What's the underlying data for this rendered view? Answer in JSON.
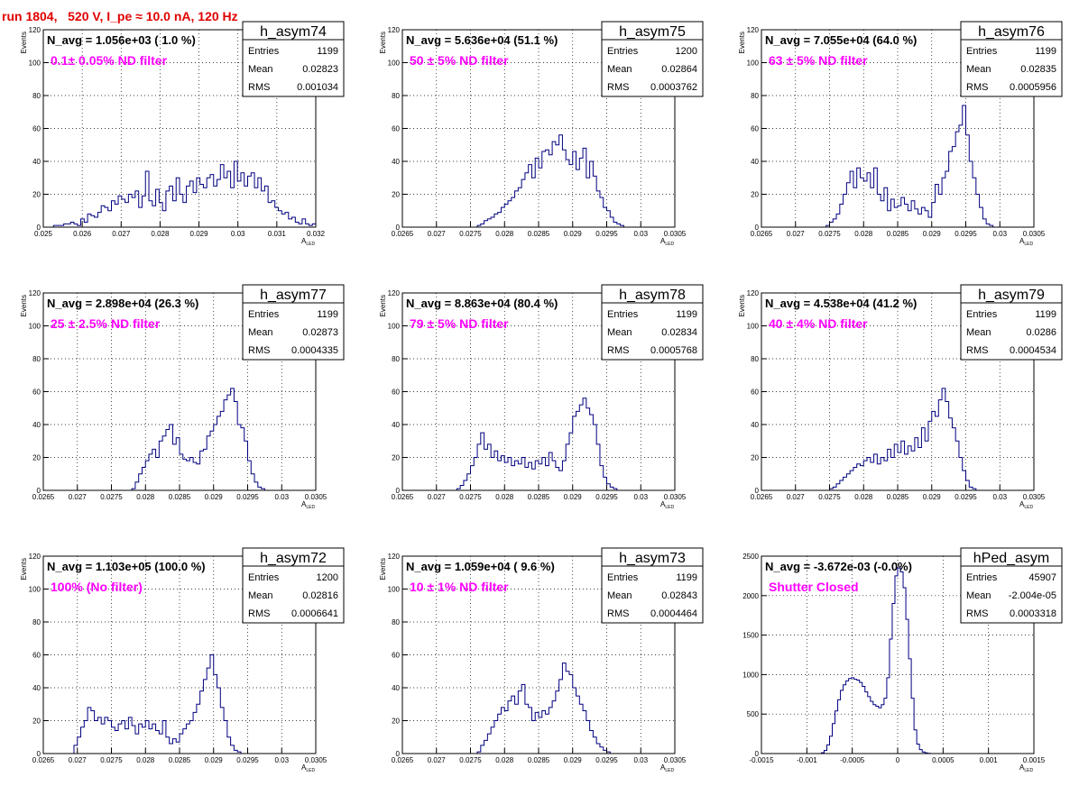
{
  "page_title": "run 1804,   520 V, I_pe ≈ 10.0 nA, 120 Hz",
  "chart_data": [
    {
      "type": "bar",
      "hist_name": "h_asym74",
      "navg": "N_avg = 1.056e+03 ( 1.0 %)",
      "filter": "0.1± 0.05% ND filter",
      "stats": {
        "entries": "1199",
        "mean": "0.02823",
        "rms": "0.001034"
      },
      "xlabel": "A",
      "xlabel_sub": "LED",
      "ylabel": "Events",
      "xlim": [
        0.025,
        0.032
      ],
      "ylim": [
        0,
        120
      ],
      "xticks": [
        0.025,
        0.026,
        0.027,
        0.028,
        0.029,
        0.03,
        0.031,
        0.032
      ],
      "xtick_labels": [
        "0.025",
        "0.026",
        "0.027",
        "0.028",
        "0.029",
        "0.03",
        "0.031",
        "0.032"
      ],
      "yticks": [
        0,
        20,
        40,
        60,
        80,
        100,
        120
      ],
      "ytick_labels": [
        "0",
        "20",
        "40",
        "60",
        "80",
        "100",
        "120"
      ],
      "bin_start": 0.025,
      "bin_width": 8.75e-05,
      "values": [
        0,
        0,
        0,
        1,
        1,
        1,
        2,
        2,
        3,
        2,
        1,
        5,
        3,
        8,
        7,
        6,
        9,
        13,
        12,
        10,
        16,
        14,
        19,
        17,
        15,
        20,
        18,
        22,
        12,
        19,
        34,
        16,
        13,
        23,
        15,
        10,
        22,
        25,
        16,
        30,
        20,
        15,
        25,
        28,
        21,
        30,
        26,
        24,
        30,
        32,
        25,
        29,
        38,
        30,
        34,
        24,
        40,
        28,
        33,
        25,
        31,
        33,
        24,
        30,
        22,
        25,
        15,
        16,
        12,
        10,
        8,
        9,
        5,
        6,
        3,
        2,
        5,
        2,
        1,
        2,
        1,
        1,
        0,
        0
      ]
    },
    {
      "type": "bar",
      "hist_name": "h_asym75",
      "navg": "N_avg = 5.636e+04 (51.1 %)",
      "filter": "50 ± 5% ND filter",
      "stats": {
        "entries": "1200",
        "mean": "0.02864",
        "rms": "0.0003762"
      },
      "xlabel": "A",
      "xlabel_sub": "LED",
      "ylabel": "Events",
      "xlim": [
        0.0265,
        0.0305
      ],
      "ylim": [
        0,
        120
      ],
      "xticks": [
        0.0265,
        0.027,
        0.0275,
        0.028,
        0.0285,
        0.029,
        0.0295,
        0.03,
        0.0305
      ],
      "xtick_labels": [
        "0.0265",
        "0.027",
        "0.0275",
        "0.028",
        "0.0285",
        "0.029",
        "0.0295",
        "0.03",
        "0.0305"
      ],
      "yticks": [
        0,
        20,
        40,
        60,
        80,
        100,
        120
      ],
      "ytick_labels": [
        "0",
        "20",
        "40",
        "60",
        "80",
        "100",
        "120"
      ],
      "bin_start": 0.0265,
      "bin_width": 5e-05,
      "values": [
        0,
        0,
        0,
        0,
        0,
        0,
        0,
        0,
        0,
        0,
        0,
        0,
        0,
        0,
        0,
        0,
        0,
        0,
        0,
        0,
        0,
        0,
        1,
        2,
        4,
        5,
        6,
        8,
        9,
        12,
        14,
        16,
        18,
        22,
        24,
        29,
        33,
        38,
        30,
        42,
        36,
        46,
        47,
        44,
        52,
        50,
        56,
        47,
        41,
        38,
        46,
        35,
        42,
        48,
        30,
        40,
        31,
        22,
        18,
        12,
        10,
        6,
        3,
        2,
        1,
        0,
        0,
        0,
        0,
        0,
        0,
        0,
        0,
        0,
        0,
        0,
        0,
        0,
        0,
        0
      ]
    },
    {
      "type": "bar",
      "hist_name": "h_asym76",
      "navg": "N_avg = 7.055e+04 (64.0 %)",
      "filter": "63 ± 5% ND filter",
      "stats": {
        "entries": "1199",
        "mean": "0.02835",
        "rms": "0.0005956"
      },
      "xlabel": "A",
      "xlabel_sub": "LED",
      "ylabel": "Events",
      "xlim": [
        0.0265,
        0.0305
      ],
      "ylim": [
        0,
        120
      ],
      "xticks": [
        0.0265,
        0.027,
        0.0275,
        0.028,
        0.0285,
        0.029,
        0.0295,
        0.03,
        0.0305
      ],
      "xtick_labels": [
        "0.0265",
        "0.027",
        "0.0275",
        "0.028",
        "0.0285",
        "0.029",
        "0.0295",
        "0.03",
        "0.0305"
      ],
      "yticks": [
        0,
        20,
        40,
        60,
        80,
        100,
        120
      ],
      "ytick_labels": [
        "0",
        "20",
        "40",
        "60",
        "80",
        "100",
        "120"
      ],
      "bin_start": 0.0265,
      "bin_width": 5e-05,
      "values": [
        0,
        0,
        0,
        0,
        0,
        0,
        0,
        0,
        0,
        0,
        0,
        0,
        0,
        0,
        0,
        0,
        0,
        0,
        0,
        1,
        3,
        5,
        8,
        14,
        20,
        27,
        34,
        24,
        36,
        30,
        28,
        33,
        24,
        36,
        20,
        16,
        24,
        10,
        17,
        12,
        13,
        18,
        14,
        10,
        16,
        11,
        8,
        12,
        10,
        6,
        15,
        26,
        20,
        30,
        34,
        46,
        49,
        58,
        62,
        74,
        56,
        40,
        30,
        20,
        12,
        5,
        2,
        1,
        0,
        0,
        0,
        0,
        0,
        0,
        0,
        0,
        0,
        0,
        0,
        0
      ]
    },
    {
      "type": "bar",
      "hist_name": "h_asym77",
      "navg": "N_avg = 2.898e+04 (26.3 %)",
      "filter": "25 ± 2.5% ND filter",
      "stats": {
        "entries": "1199",
        "mean": "0.02873",
        "rms": "0.0004335"
      },
      "xlabel": "A",
      "xlabel_sub": "LED",
      "ylabel": "Events",
      "xlim": [
        0.0265,
        0.0305
      ],
      "ylim": [
        0,
        120
      ],
      "xticks": [
        0.0265,
        0.027,
        0.0275,
        0.028,
        0.0285,
        0.029,
        0.0295,
        0.03,
        0.0305
      ],
      "xtick_labels": [
        "0.0265",
        "0.027",
        "0.0275",
        "0.028",
        "0.0285",
        "0.029",
        "0.0295",
        "0.03",
        "0.0305"
      ],
      "yticks": [
        0,
        20,
        40,
        60,
        80,
        100,
        120
      ],
      "ytick_labels": [
        "0",
        "20",
        "40",
        "60",
        "80",
        "100",
        "120"
      ],
      "bin_start": 0.0265,
      "bin_width": 5e-05,
      "values": [
        0,
        0,
        0,
        0,
        0,
        0,
        0,
        0,
        0,
        0,
        0,
        0,
        0,
        0,
        0,
        0,
        0,
        0,
        0,
        0,
        0,
        0,
        0,
        0,
        0,
        0,
        1,
        5,
        10,
        14,
        18,
        22,
        25,
        20,
        30,
        33,
        37,
        40,
        28,
        32,
        22,
        19,
        18,
        20,
        17,
        16,
        24,
        25,
        33,
        36,
        40,
        45,
        48,
        55,
        58,
        62,
        54,
        40,
        38,
        30,
        18,
        10,
        5,
        2,
        1,
        0,
        0,
        0,
        0,
        0,
        0,
        0,
        0,
        0,
        0,
        0,
        0,
        0,
        0,
        0
      ]
    },
    {
      "type": "bar",
      "hist_name": "h_asym78",
      "navg": "N_avg = 8.863e+04 (80.4 %)",
      "filter": "79 ± 5% ND filter",
      "stats": {
        "entries": "1199",
        "mean": "0.02834",
        "rms": "0.0005768"
      },
      "xlabel": "A",
      "xlabel_sub": "LED",
      "ylabel": "Events",
      "xlim": [
        0.0265,
        0.0305
      ],
      "ylim": [
        0,
        120
      ],
      "xticks": [
        0.0265,
        0.027,
        0.0275,
        0.028,
        0.0285,
        0.029,
        0.0295,
        0.03,
        0.0305
      ],
      "xtick_labels": [
        "0.0265",
        "0.027",
        "0.0275",
        "0.028",
        "0.0285",
        "0.029",
        "0.0295",
        "0.03",
        "0.0305"
      ],
      "yticks": [
        0,
        20,
        40,
        60,
        80,
        100,
        120
      ],
      "ytick_labels": [
        "0",
        "20",
        "40",
        "60",
        "80",
        "100",
        "120"
      ],
      "bin_start": 0.0265,
      "bin_width": 5e-05,
      "values": [
        0,
        0,
        0,
        0,
        0,
        0,
        0,
        0,
        0,
        0,
        0,
        0,
        0,
        0,
        0,
        0,
        1,
        3,
        6,
        10,
        15,
        20,
        28,
        35,
        25,
        28,
        20,
        24,
        18,
        21,
        17,
        20,
        15,
        18,
        16,
        20,
        14,
        17,
        13,
        18,
        16,
        20,
        15,
        23,
        18,
        14,
        12,
        18,
        28,
        35,
        45,
        48,
        52,
        56,
        50,
        46,
        40,
        28,
        15,
        8,
        4,
        2,
        1,
        0,
        0,
        0,
        0,
        0,
        0,
        0,
        0,
        0,
        0,
        0,
        0,
        0,
        0,
        0,
        0,
        0
      ]
    },
    {
      "type": "bar",
      "hist_name": "h_asym79",
      "navg": "N_avg = 4.538e+04 (41.2 %)",
      "filter": "40 ± 4% ND filter",
      "stats": {
        "entries": "1199",
        "mean": "0.0286",
        "rms": "0.0004534"
      },
      "xlabel": "A",
      "xlabel_sub": "LED",
      "ylabel": "Events",
      "xlim": [
        0.0265,
        0.0305
      ],
      "ylim": [
        0,
        120
      ],
      "xticks": [
        0.0265,
        0.027,
        0.0275,
        0.028,
        0.0285,
        0.029,
        0.0295,
        0.03,
        0.0305
      ],
      "xtick_labels": [
        "0.0265",
        "0.027",
        "0.0275",
        "0.028",
        "0.0285",
        "0.029",
        "0.0295",
        "0.03",
        "0.0305"
      ],
      "yticks": [
        0,
        20,
        40,
        60,
        80,
        100,
        120
      ],
      "ytick_labels": [
        "0",
        "20",
        "40",
        "60",
        "80",
        "100",
        "120"
      ],
      "bin_start": 0.0265,
      "bin_width": 5e-05,
      "values": [
        0,
        0,
        0,
        0,
        0,
        0,
        0,
        0,
        0,
        0,
        0,
        0,
        0,
        0,
        0,
        0,
        0,
        0,
        0,
        0,
        1,
        2,
        4,
        6,
        8,
        10,
        12,
        14,
        16,
        15,
        18,
        20,
        17,
        22,
        16,
        20,
        18,
        25,
        20,
        28,
        23,
        30,
        22,
        27,
        24,
        32,
        26,
        38,
        30,
        42,
        48,
        45,
        55,
        62,
        54,
        44,
        38,
        30,
        20,
        12,
        6,
        2,
        1,
        0,
        0,
        0,
        0,
        0,
        0,
        0,
        0,
        0,
        0,
        0,
        0,
        0,
        0,
        0,
        0,
        0
      ]
    },
    {
      "type": "bar",
      "hist_name": "h_asym72",
      "navg": "N_avg = 1.103e+05 (100.0 %)",
      "filter": "100% (No filter)",
      "stats": {
        "entries": "1200",
        "mean": "0.02816",
        "rms": "0.0006641"
      },
      "xlabel": "A",
      "xlabel_sub": "LED",
      "ylabel": "Events",
      "xlim": [
        0.0265,
        0.0305
      ],
      "ylim": [
        0,
        120
      ],
      "xticks": [
        0.0265,
        0.027,
        0.0275,
        0.028,
        0.0285,
        0.029,
        0.0295,
        0.03,
        0.0305
      ],
      "xtick_labels": [
        "0.0265",
        "0.027",
        "0.0275",
        "0.028",
        "0.0285",
        "0.029",
        "0.0295",
        "0.03",
        "0.0305"
      ],
      "yticks": [
        0,
        20,
        40,
        60,
        80,
        100,
        120
      ],
      "ytick_labels": [
        "0",
        "20",
        "40",
        "60",
        "80",
        "100",
        "120"
      ],
      "bin_start": 0.0265,
      "bin_width": 5e-05,
      "values": [
        0,
        0,
        0,
        0,
        0,
        0,
        0,
        0,
        0,
        5,
        10,
        16,
        20,
        28,
        26,
        20,
        22,
        18,
        22,
        20,
        16,
        14,
        18,
        20,
        15,
        22,
        17,
        12,
        18,
        16,
        20,
        15,
        18,
        14,
        12,
        20,
        10,
        6,
        9,
        7,
        12,
        15,
        18,
        20,
        25,
        30,
        38,
        45,
        52,
        60,
        48,
        40,
        28,
        20,
        10,
        5,
        2,
        1,
        0,
        0,
        0,
        0,
        0,
        0,
        0,
        0,
        0,
        0,
        0,
        0,
        0,
        0,
        0,
        0,
        0,
        0,
        0,
        0,
        0,
        0
      ]
    },
    {
      "type": "bar",
      "hist_name": "h_asym73",
      "navg": "N_avg = 1.059e+04 ( 9.6 %)",
      "filter": "10 ± 1% ND filter",
      "stats": {
        "entries": "1199",
        "mean": "0.02843",
        "rms": "0.0004464"
      },
      "xlabel": "A",
      "xlabel_sub": "LED",
      "ylabel": "Events",
      "xlim": [
        0.0265,
        0.0305
      ],
      "ylim": [
        0,
        120
      ],
      "xticks": [
        0.0265,
        0.027,
        0.0275,
        0.028,
        0.0285,
        0.029,
        0.0295,
        0.03,
        0.0305
      ],
      "xtick_labels": [
        "0.0265",
        "0.027",
        "0.0275",
        "0.028",
        "0.0285",
        "0.029",
        "0.0295",
        "0.03",
        "0.0305"
      ],
      "yticks": [
        0,
        20,
        40,
        60,
        80,
        100,
        120
      ],
      "ytick_labels": [
        "0",
        "20",
        "40",
        "60",
        "80",
        "100",
        "120"
      ],
      "bin_start": 0.0265,
      "bin_width": 5e-05,
      "values": [
        0,
        0,
        0,
        0,
        0,
        0,
        0,
        0,
        0,
        0,
        0,
        0,
        0,
        0,
        0,
        0,
        0,
        0,
        0,
        0,
        0,
        0,
        1,
        5,
        8,
        12,
        16,
        20,
        24,
        28,
        26,
        32,
        35,
        30,
        38,
        42,
        30,
        28,
        20,
        25,
        22,
        26,
        24,
        28,
        32,
        38,
        45,
        55,
        50,
        48,
        40,
        35,
        30,
        26,
        20,
        14,
        10,
        6,
        4,
        2,
        1,
        0,
        0,
        0,
        0,
        0,
        0,
        0,
        0,
        0,
        0,
        0,
        0,
        0,
        0,
        0,
        0,
        0,
        0,
        0
      ]
    },
    {
      "type": "bar",
      "hist_name": "hPed_asym",
      "navg": "N_avg = -3.672e-03 (-0.0%)",
      "filter": "Shutter Closed",
      "stats": {
        "entries": "45907",
        "mean": "-2.004e-05",
        "rms": "0.0003318"
      },
      "xlabel": "A",
      "xlabel_sub": "LED",
      "ylabel": "",
      "xlim": [
        -0.0015,
        0.0015
      ],
      "ylim": [
        0,
        2500
      ],
      "xticks": [
        -0.0015,
        -0.001,
        -0.0005,
        0,
        0.0005,
        0.001,
        0.0015
      ],
      "xtick_labels": [
        "-0.0015",
        "-0.001",
        "-0.0005",
        "0",
        "0.0005",
        "0.001",
        "0.0015"
      ],
      "yticks": [
        0,
        500,
        1000,
        1500,
        2000,
        2500
      ],
      "ytick_labels": [
        "0",
        "500",
        "1000",
        "1500",
        "2000",
        "2500"
      ],
      "bin_start": -0.0015,
      "bin_width": 3e-05,
      "values": [
        0,
        0,
        0,
        0,
        0,
        0,
        0,
        0,
        0,
        0,
        0,
        0,
        0,
        0,
        0,
        0,
        0,
        0,
        0,
        0,
        0,
        0,
        10,
        40,
        110,
        220,
        380,
        540,
        680,
        800,
        870,
        920,
        950,
        960,
        940,
        930,
        900,
        850,
        780,
        720,
        660,
        620,
        600,
        580,
        620,
        700,
        960,
        1450,
        1900,
        2250,
        2350,
        2300,
        2100,
        1700,
        1200,
        700,
        300,
        120,
        50,
        20,
        8,
        3,
        0,
        0,
        0,
        0,
        0,
        0,
        0,
        0,
        0,
        0,
        0,
        0,
        0,
        0,
        0,
        0,
        0,
        0,
        0,
        0,
        0,
        0,
        0,
        0,
        0,
        0,
        0,
        0,
        0,
        0,
        0,
        0,
        0,
        0,
        0,
        0,
        0
      ]
    }
  ]
}
